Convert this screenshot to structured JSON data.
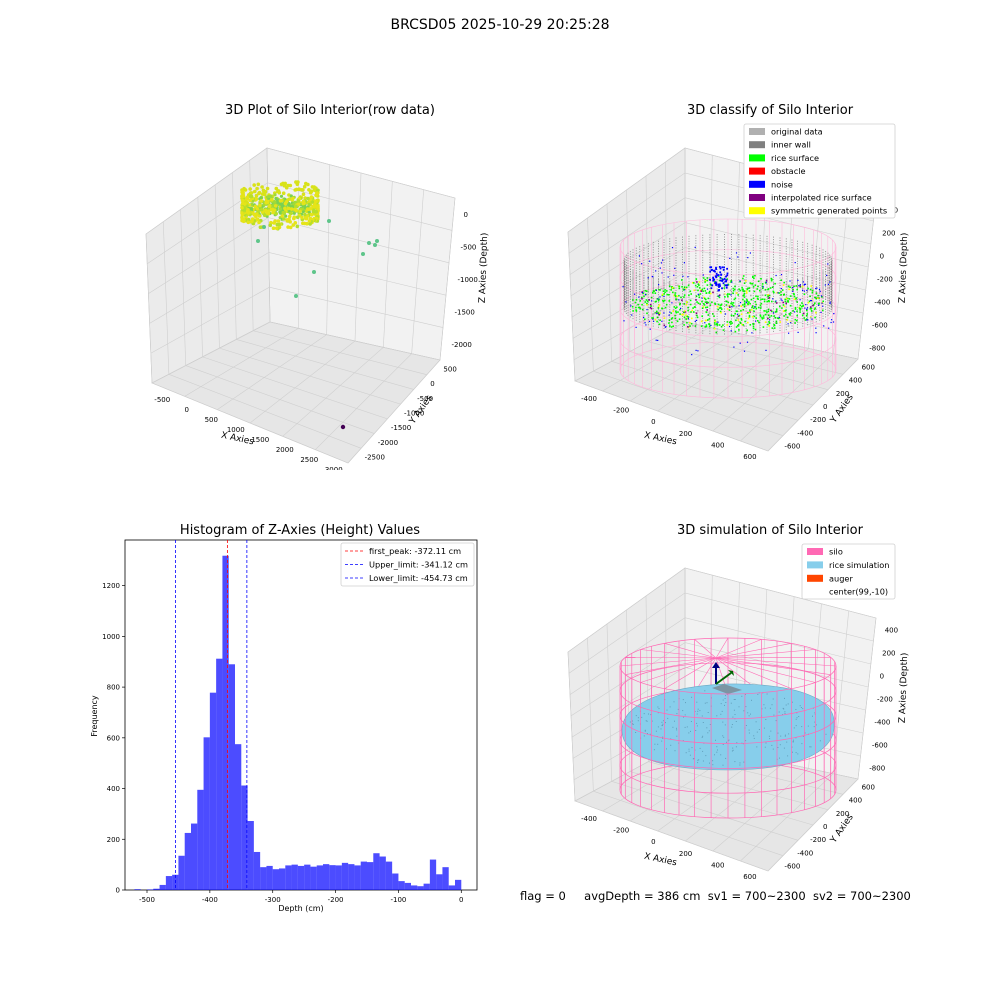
{
  "suptitle": "BRCSD05 2025-10-29 20:25:28",
  "footer": {
    "flag": "flag = 0",
    "avg_depth": "avgDepth = 386 cm",
    "sv1": "sv1 = 700~2300",
    "sv2": "sv2 = 700~2300"
  },
  "panel_raw": {
    "title": "3D Plot of Silo Interior(row data)",
    "xlabel": "X Axies",
    "ylabel": "Y Axies",
    "zlabel": "Z Axies (Depth)",
    "x_ticks": [
      "-500",
      "0",
      "500",
      "1000",
      "1500",
      "2000",
      "2500",
      "3000"
    ],
    "y_ticks": [
      "500",
      "0",
      "-500",
      "-1000",
      "-1500",
      "-2000",
      "-2500"
    ],
    "z_ticks": [
      "0",
      "-500",
      "-1000",
      "-1500",
      "-2000"
    ],
    "colors": {
      "surface": "#b9e020",
      "outlier": "#5ec58a",
      "far_outlier": "#440154"
    }
  },
  "panel_classify": {
    "title": "3D classify of Silo Interior",
    "xlabel": "X Axies",
    "ylabel": "Y Axies",
    "zlabel": "Z Axies (Depth)",
    "x_ticks": [
      "-400",
      "-200",
      "0",
      "200",
      "400",
      "600"
    ],
    "y_ticks": [
      "600",
      "400",
      "200",
      "0",
      "-200",
      "-400",
      "-600"
    ],
    "z_ticks": [
      "400",
      "200",
      "0",
      "-200",
      "-400",
      "-600",
      "-800"
    ],
    "legend": [
      {
        "label": "original data",
        "color": "#b0b0b0"
      },
      {
        "label": "inner wall",
        "color": "#808080"
      },
      {
        "label": "rice surface",
        "color": "#00ff00"
      },
      {
        "label": "obstacle",
        "color": "#ff0000"
      },
      {
        "label": "noise",
        "color": "#0000ff"
      },
      {
        "label": "interpolated rice surface",
        "color": "#800080"
      },
      {
        "label": "symmetric generated points",
        "color": "#ffff00"
      }
    ]
  },
  "panel_hist": {
    "title": "Histogram of Z-Axies (Height) Values",
    "xlabel": "Depth (cm)",
    "ylabel": "Frequency",
    "legend": [
      {
        "label": "first_peak: -372.11 cm",
        "color": "#ff0000"
      },
      {
        "label": "Upper_limit: -341.12 cm",
        "color": "#0000ff"
      },
      {
        "label": "Lower_limit: -454.73 cm",
        "color": "#0000ff"
      }
    ]
  },
  "panel_sim": {
    "title": "3D simulation of Silo Interior",
    "xlabel": "X Axies",
    "ylabel": "Y Axies",
    "zlabel": "Z Axies (Depth)",
    "x_ticks": [
      "-400",
      "-200",
      "0",
      "200",
      "400",
      "600"
    ],
    "y_ticks": [
      "600",
      "400",
      "200",
      "0",
      "-200",
      "-400",
      "-600"
    ],
    "z_ticks": [
      "400",
      "200",
      "0",
      "-200",
      "-400",
      "-600",
      "-800"
    ],
    "legend": [
      {
        "label": "silo",
        "color": "#ff69b4"
      },
      {
        "label": "rice simulation",
        "color": "#87ceeb"
      },
      {
        "label": "auger",
        "color": "#ff4500"
      },
      {
        "label": "center(99,-10)",
        "color": ""
      }
    ]
  },
  "chart_data": {
    "type": "bar",
    "title": "Histogram of Z-Axies (Height) Values",
    "xlabel": "Depth (cm)",
    "ylabel": "Frequency",
    "xlim": [
      -535,
      25
    ],
    "ylim": [
      0,
      1380
    ],
    "x_ticks": [
      -500,
      -400,
      -300,
      -200,
      -100,
      0
    ],
    "y_ticks": [
      0,
      200,
      400,
      600,
      800,
      1000,
      1200
    ],
    "grid": false,
    "legend_position": "upper right",
    "bar_color": "#0000ff",
    "bin_width": 10,
    "bins": [
      {
        "x0": -520,
        "count": 3
      },
      {
        "x0": -510,
        "count": 0
      },
      {
        "x0": -500,
        "count": 2
      },
      {
        "x0": -490,
        "count": 5
      },
      {
        "x0": -480,
        "count": 20
      },
      {
        "x0": -470,
        "count": 55
      },
      {
        "x0": -460,
        "count": 60
      },
      {
        "x0": -450,
        "count": 135
      },
      {
        "x0": -440,
        "count": 225
      },
      {
        "x0": -430,
        "count": 262
      },
      {
        "x0": -420,
        "count": 395
      },
      {
        "x0": -410,
        "count": 602
      },
      {
        "x0": -400,
        "count": 778
      },
      {
        "x0": -390,
        "count": 912
      },
      {
        "x0": -380,
        "count": 1318
      },
      {
        "x0": -370,
        "count": 890
      },
      {
        "x0": -360,
        "count": 575
      },
      {
        "x0": -350,
        "count": 412
      },
      {
        "x0": -340,
        "count": 272
      },
      {
        "x0": -330,
        "count": 150
      },
      {
        "x0": -320,
        "count": 90
      },
      {
        "x0": -310,
        "count": 95
      },
      {
        "x0": -300,
        "count": 82
      },
      {
        "x0": -290,
        "count": 85
      },
      {
        "x0": -280,
        "count": 97
      },
      {
        "x0": -270,
        "count": 100
      },
      {
        "x0": -260,
        "count": 95
      },
      {
        "x0": -250,
        "count": 100
      },
      {
        "x0": -240,
        "count": 92
      },
      {
        "x0": -230,
        "count": 97
      },
      {
        "x0": -220,
        "count": 102
      },
      {
        "x0": -210,
        "count": 98
      },
      {
        "x0": -200,
        "count": 97
      },
      {
        "x0": -190,
        "count": 107
      },
      {
        "x0": -180,
        "count": 102
      },
      {
        "x0": -170,
        "count": 97
      },
      {
        "x0": -160,
        "count": 112
      },
      {
        "x0": -150,
        "count": 110
      },
      {
        "x0": -140,
        "count": 145
      },
      {
        "x0": -130,
        "count": 132
      },
      {
        "x0": -120,
        "count": 112
      },
      {
        "x0": -110,
        "count": 65
      },
      {
        "x0": -100,
        "count": 35
      },
      {
        "x0": -90,
        "count": 28
      },
      {
        "x0": -80,
        "count": 18
      },
      {
        "x0": -70,
        "count": 15
      },
      {
        "x0": -60,
        "count": 25
      },
      {
        "x0": -50,
        "count": 120
      },
      {
        "x0": -40,
        "count": 62
      },
      {
        "x0": -30,
        "count": 90
      },
      {
        "x0": -20,
        "count": 18
      },
      {
        "x0": -10,
        "count": 40
      }
    ],
    "vlines": [
      {
        "name": "first_peak",
        "x": -372.11,
        "color": "#ff0000"
      },
      {
        "name": "Upper_limit",
        "x": -341.12,
        "color": "#0000ff"
      },
      {
        "name": "Lower_limit",
        "x": -454.73,
        "color": "#0000ff"
      }
    ]
  }
}
